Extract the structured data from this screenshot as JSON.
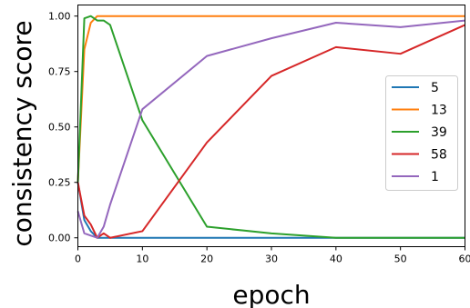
{
  "chart_data": {
    "type": "line",
    "title": "",
    "xlabel": "epoch",
    "ylabel": "consistency score",
    "xlim": [
      0,
      60
    ],
    "ylim": [
      -0.04,
      1.05
    ],
    "xticks": [
      "0",
      "10",
      "20",
      "30",
      "40",
      "50",
      "60"
    ],
    "xtick_values": [
      0,
      10,
      20,
      30,
      40,
      50,
      60
    ],
    "yticks": [
      "0.00",
      "0.25",
      "0.50",
      "0.75",
      "1.00"
    ],
    "ytick_values": [
      0,
      0.25,
      0.5,
      0.75,
      1.0
    ],
    "grid": false,
    "legend_position": "right",
    "series": [
      {
        "name": "5",
        "color": "#1f77b4",
        "x": [
          0,
          1,
          2,
          3,
          4,
          5,
          10,
          20,
          30,
          40,
          50,
          60
        ],
        "y": [
          0.25,
          0.08,
          0.03,
          0.0,
          0.0,
          0.0,
          0.0,
          0.0,
          0.0,
          0.0,
          0.0,
          0.0
        ]
      },
      {
        "name": "13",
        "color": "#ff7f0e",
        "x": [
          0,
          1,
          2,
          3,
          4,
          5,
          10,
          20,
          30,
          40,
          50,
          60
        ],
        "y": [
          0.25,
          0.85,
          0.97,
          1.0,
          1.0,
          1.0,
          1.0,
          1.0,
          1.0,
          1.0,
          1.0,
          1.0
        ]
      },
      {
        "name": "39",
        "color": "#2ca02c",
        "x": [
          0,
          1,
          2,
          3,
          4,
          5,
          10,
          20,
          30,
          40,
          50,
          60
        ],
        "y": [
          0.25,
          0.99,
          1.0,
          0.98,
          0.98,
          0.96,
          0.53,
          0.05,
          0.02,
          0.0,
          0.0,
          0.0
        ]
      },
      {
        "name": "58",
        "color": "#d62728",
        "x": [
          0,
          1,
          2,
          3,
          4,
          5,
          10,
          20,
          30,
          40,
          50,
          60
        ],
        "y": [
          0.25,
          0.1,
          0.06,
          0.0,
          0.02,
          0.0,
          0.03,
          0.43,
          0.73,
          0.86,
          0.83,
          0.96
        ]
      },
      {
        "name": "1",
        "color": "#9467bd",
        "x": [
          0,
          1,
          2,
          3,
          4,
          5,
          10,
          20,
          30,
          40,
          50,
          60
        ],
        "y": [
          0.12,
          0.02,
          0.01,
          0.0,
          0.05,
          0.15,
          0.58,
          0.82,
          0.9,
          0.97,
          0.95,
          0.98
        ]
      }
    ]
  }
}
